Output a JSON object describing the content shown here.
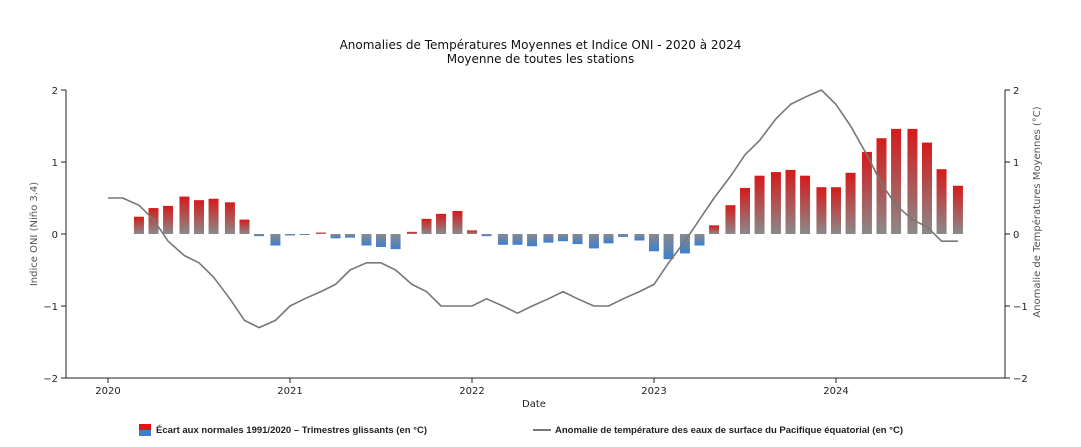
{
  "chart_data": {
    "type": "bar+line",
    "title": "Anomalies de Températures Moyennes et Indice ONI - 2020 à 2024",
    "subtitle": "Moyenne de toutes les stations",
    "xlabel": "Date",
    "ylabel_left": "Indice ONI (Niño 3.4)",
    "ylabel_right": "Anomalie de Températures Moyennes (°C)",
    "ylim": [
      -2,
      2
    ],
    "yticks": [
      "2",
      "1",
      "0",
      "−1",
      "−2"
    ],
    "xlim": [
      2020.0,
      2024.75
    ],
    "xticks": [
      "2020",
      "2021",
      "2022",
      "2023",
      "2024"
    ],
    "bar_series": {
      "name": "Écart aux normales 1991/2020 – Trimestres glissants (en °C)",
      "x": [
        2020.17,
        2020.25,
        2020.33,
        2020.42,
        2020.5,
        2020.58,
        2020.67,
        2020.75,
        2020.83,
        2020.92,
        2021.0,
        2021.08,
        2021.17,
        2021.25,
        2021.33,
        2021.42,
        2021.5,
        2021.58,
        2021.67,
        2021.75,
        2021.83,
        2021.92,
        2022.0,
        2022.08,
        2022.17,
        2022.25,
        2022.33,
        2022.42,
        2022.5,
        2022.58,
        2022.67,
        2022.75,
        2022.83,
        2022.92,
        2023.0,
        2023.08,
        2023.17,
        2023.25,
        2023.33,
        2023.42,
        2023.5,
        2023.58,
        2023.67,
        2023.75,
        2023.83,
        2023.92,
        2024.0,
        2024.08,
        2024.17,
        2024.25,
        2024.33,
        2024.42,
        2024.5,
        2024.58,
        2024.67
      ],
      "values": [
        0.24,
        0.36,
        0.39,
        0.52,
        0.47,
        0.49,
        0.44,
        0.2,
        -0.03,
        -0.16,
        -0.02,
        -0.01,
        0.02,
        -0.06,
        -0.05,
        -0.16,
        -0.18,
        -0.21,
        0.03,
        0.21,
        0.28,
        0.32,
        0.05,
        -0.03,
        -0.15,
        -0.15,
        -0.17,
        -0.12,
        -0.1,
        -0.14,
        -0.2,
        -0.13,
        -0.04,
        -0.09,
        -0.24,
        -0.35,
        -0.27,
        -0.16,
        0.12,
        0.4,
        0.64,
        0.81,
        0.86,
        0.89,
        0.81,
        0.65,
        0.65,
        0.85,
        1.14,
        1.33,
        1.46,
        1.46,
        1.27,
        0.9,
        0.67
      ]
    },
    "line_series": {
      "name": "Anomalie de température des eaux de surface du Pacifique équatorial (en °C)",
      "x": [
        2020.0,
        2020.08,
        2020.17,
        2020.25,
        2020.33,
        2020.42,
        2020.5,
        2020.58,
        2020.67,
        2020.75,
        2020.83,
        2020.92,
        2021.0,
        2021.08,
        2021.17,
        2021.25,
        2021.33,
        2021.42,
        2021.5,
        2021.58,
        2021.67,
        2021.75,
        2021.83,
        2021.92,
        2022.0,
        2022.08,
        2022.17,
        2022.25,
        2022.33,
        2022.42,
        2022.5,
        2022.58,
        2022.67,
        2022.75,
        2022.83,
        2022.92,
        2023.0,
        2023.08,
        2023.17,
        2023.25,
        2023.33,
        2023.42,
        2023.5,
        2023.58,
        2023.67,
        2023.75,
        2023.83,
        2023.92,
        2024.0,
        2024.08,
        2024.17,
        2024.25,
        2024.33,
        2024.42,
        2024.5,
        2024.58,
        2024.67
      ],
      "values": [
        0.5,
        0.5,
        0.4,
        0.2,
        -0.1,
        -0.3,
        -0.4,
        -0.6,
        -0.9,
        -1.2,
        -1.3,
        -1.2,
        -1.0,
        -0.9,
        -0.8,
        -0.7,
        -0.5,
        -0.4,
        -0.4,
        -0.5,
        -0.7,
        -0.8,
        -1.0,
        -1.0,
        -1.0,
        -0.9,
        -1.0,
        -1.1,
        -1.0,
        -0.9,
        -0.8,
        -0.9,
        -1.0,
        -1.0,
        -0.9,
        -0.8,
        -0.7,
        -0.4,
        -0.1,
        0.2,
        0.5,
        0.8,
        1.1,
        1.3,
        1.6,
        1.8,
        1.9,
        2.0,
        1.8,
        1.5,
        1.1,
        0.7,
        0.4,
        0.2,
        0.1,
        -0.1,
        -0.1
      ]
    },
    "colors": {
      "bar_positive": "#d61a1a",
      "bar_negative": "#3d7fd1",
      "bar_neutral": "#8a8a8a",
      "line": "#777777",
      "axis": "#222222"
    },
    "grid": false,
    "legend_position": "bottom"
  }
}
